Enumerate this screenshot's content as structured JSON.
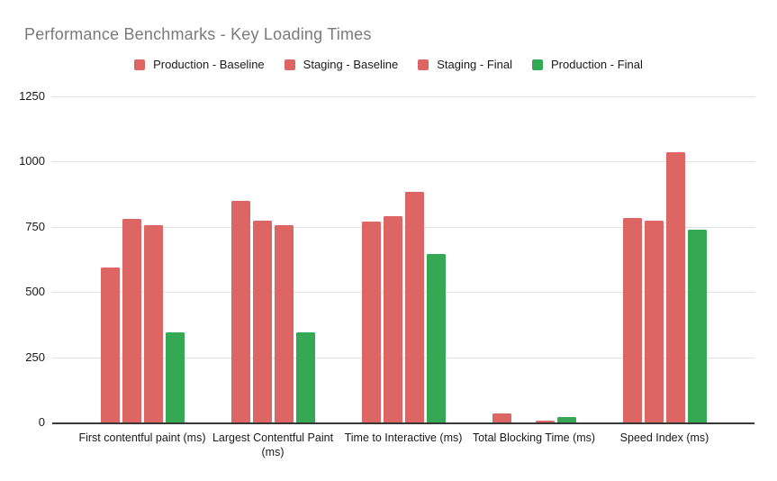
{
  "chart_data": {
    "type": "bar",
    "title": "Performance Benchmarks - Key Loading Times",
    "unit": "ms",
    "categories": [
      "First contentful paint (ms)",
      "Largest Contentful Paint\n(ms)",
      "Time to Interactive (ms)",
      "Total Blocking Time (ms)",
      "Speed Index (ms)"
    ],
    "series": [
      {
        "name": "Production - Baseline",
        "color": "#dd6664",
        "values": [
          595,
          850,
          770,
          33,
          785
        ]
      },
      {
        "name": "Staging - Baseline",
        "color": "#dd6664",
        "values": [
          780,
          775,
          790,
          0,
          775
        ]
      },
      {
        "name": "Staging - Final",
        "color": "#dd6664",
        "values": [
          755,
          755,
          885,
          6,
          1035
        ]
      },
      {
        "name": "Production - Final",
        "color": "#34a853",
        "values": [
          345,
          345,
          645,
          20,
          740
        ]
      }
    ],
    "ylim": [
      0,
      1250
    ],
    "yticks": [
      0,
      250,
      500,
      750,
      1000,
      1250
    ],
    "grid": true,
    "legend_position": "top",
    "xlabel": "",
    "ylabel": ""
  },
  "colors": {
    "title_text": "#7a7a7a",
    "axis_text": "#1a1a1a",
    "gridline": "#e2e2e2",
    "baseline": "#383838",
    "background": "#ffffff"
  }
}
